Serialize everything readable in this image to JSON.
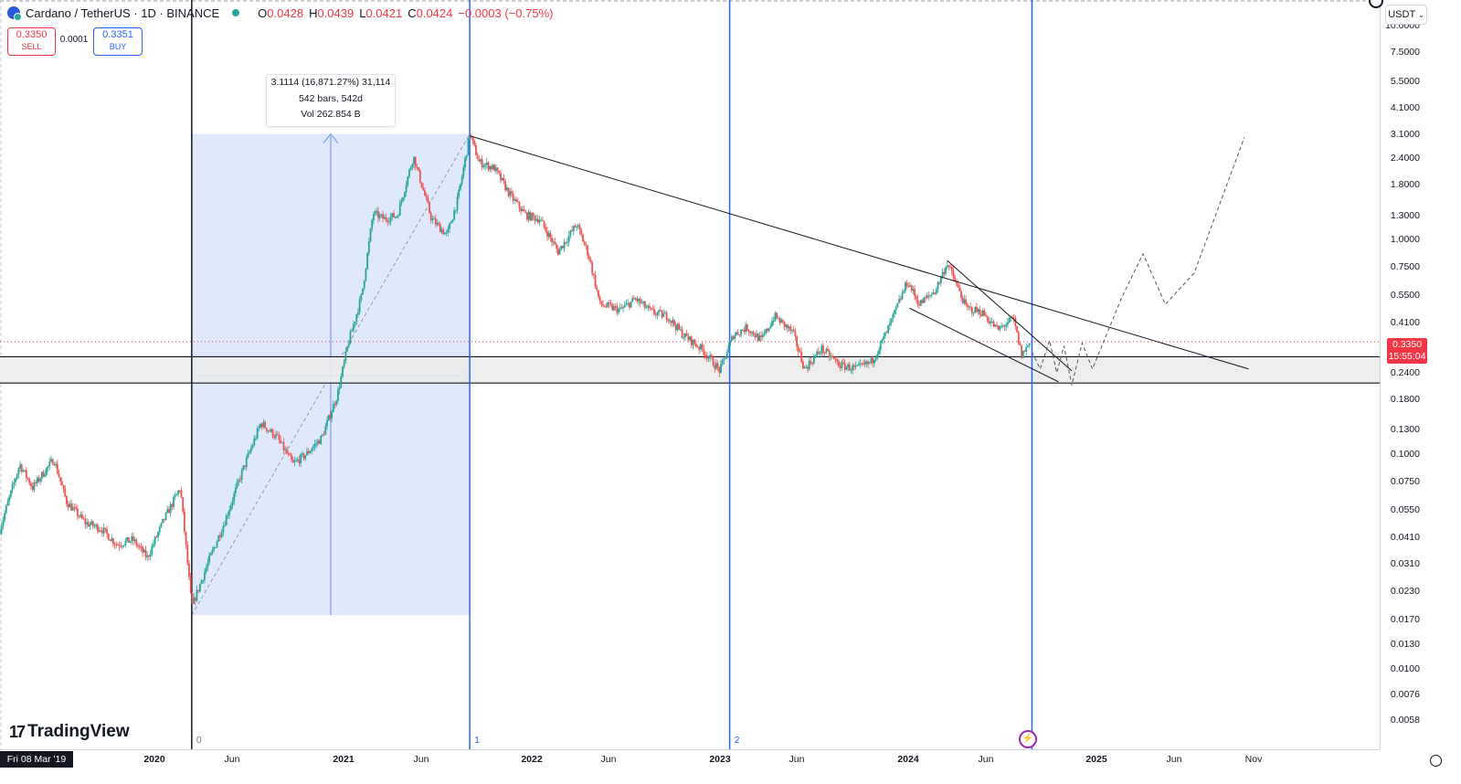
{
  "header": {
    "symbol": "Cardano / TetherUS · 1D · BINANCE",
    "open_label": "O",
    "open": "0.0428",
    "high_label": "H",
    "high": "0.0439",
    "low_label": "L",
    "low": "0.0421",
    "close_label": "C",
    "close": "0.0424",
    "change": "−0.0003 (−0.75%)"
  },
  "trade": {
    "sell_price": "0.3350",
    "sell_label": "SELL",
    "spread": "0.0001",
    "buy_price": "0.3351",
    "buy_label": "BUY"
  },
  "tooltip": {
    "line1": "3.1114 (16,871.27%) 31,114",
    "line2": "542 bars, 542d",
    "line3": "Vol 262.854 B"
  },
  "price_scale": {
    "currency": "USDT",
    "labels": [
      "10.0000",
      "7.5000",
      "5.5000",
      "4.1000",
      "3.1000",
      "2.4000",
      "1.8000",
      "1.3000",
      "1.0000",
      "0.7500",
      "0.5500",
      "0.4100",
      "0.2400",
      "0.1800",
      "0.1300",
      "0.1000",
      "0.0750",
      "0.0550",
      "0.0410",
      "0.0310",
      "0.0230",
      "0.0170",
      "0.0130",
      "0.0100",
      "0.0076",
      "0.0058"
    ],
    "current_price": "0.3350",
    "countdown": "15:55:04"
  },
  "time_scale": {
    "cursor_date": "Fri 08 Mar '19",
    "labels": [
      {
        "t": "2020",
        "bold": true
      },
      {
        "t": "Jun",
        "bold": false
      },
      {
        "t": "2021",
        "bold": true
      },
      {
        "t": "Jun",
        "bold": false
      },
      {
        "t": "2022",
        "bold": true
      },
      {
        "t": "Jun",
        "bold": false
      },
      {
        "t": "2023",
        "bold": true
      },
      {
        "t": "Jun",
        "bold": false
      },
      {
        "t": "2024",
        "bold": true
      },
      {
        "t": "Jun",
        "bold": false
      },
      {
        "t": "2025",
        "bold": true
      },
      {
        "t": "Jun",
        "bold": false
      },
      {
        "t": "Nov",
        "bold": false
      }
    ]
  },
  "vline_labels": [
    "0",
    "1",
    "2"
  ],
  "brand": "TradingView",
  "colors": {
    "up": "#26a69a",
    "down": "#ef5350",
    "range_fill": "#dbe4fb",
    "vline": "#2962ff",
    "support_band": "#ececec",
    "price_tag": "#f23645"
  },
  "chart_data": {
    "type": "candlestick",
    "title": "Cardano / TetherUS · 1D · BINANCE",
    "y_scale": "log",
    "ylim": [
      0.005,
      12
    ],
    "x_range": [
      "2019-03-08",
      "2025-12-31"
    ],
    "current_price": 0.335,
    "price_path": [
      [
        "2019-03-08",
        0.045
      ],
      [
        "2019-04-15",
        0.09
      ],
      [
        "2019-05-10",
        0.07
      ],
      [
        "2019-06-20",
        0.095
      ],
      [
        "2019-07-15",
        0.06
      ],
      [
        "2019-08-20",
        0.048
      ],
      [
        "2019-09-20",
        0.045
      ],
      [
        "2019-10-20",
        0.038
      ],
      [
        "2019-11-20",
        0.04
      ],
      [
        "2019-12-18",
        0.033
      ],
      [
        "2020-01-20",
        0.05
      ],
      [
        "2020-02-20",
        0.07
      ],
      [
        "2020-03-13",
        0.0194
      ],
      [
        "2020-04-15",
        0.032
      ],
      [
        "2020-05-15",
        0.048
      ],
      [
        "2020-06-20",
        0.085
      ],
      [
        "2020-07-25",
        0.14
      ],
      [
        "2020-08-25",
        0.12
      ],
      [
        "2020-09-25",
        0.09
      ],
      [
        "2020-10-20",
        0.1
      ],
      [
        "2020-11-20",
        0.12
      ],
      [
        "2020-12-20",
        0.19
      ],
      [
        "2021-01-10",
        0.33
      ],
      [
        "2021-02-05",
        0.55
      ],
      [
        "2021-02-27",
        1.33
      ],
      [
        "2021-03-20",
        1.25
      ],
      [
        "2021-04-15",
        1.3
      ],
      [
        "2021-05-16",
        2.45
      ],
      [
        "2021-06-20",
        1.25
      ],
      [
        "2021-07-20",
        1.05
      ],
      [
        "2021-08-10",
        1.55
      ],
      [
        "2021-09-02",
        3.1
      ],
      [
        "2021-09-20",
        2.3
      ],
      [
        "2021-10-20",
        2.15
      ],
      [
        "2021-11-20",
        1.6
      ],
      [
        "2021-12-20",
        1.3
      ],
      [
        "2022-01-15",
        1.25
      ],
      [
        "2022-02-20",
        0.88
      ],
      [
        "2022-03-28",
        1.18
      ],
      [
        "2022-04-20",
        0.85
      ],
      [
        "2022-05-12",
        0.5
      ],
      [
        "2022-06-20",
        0.47
      ],
      [
        "2022-07-20",
        0.53
      ],
      [
        "2022-08-20",
        0.46
      ],
      [
        "2022-09-20",
        0.44
      ],
      [
        "2022-10-20",
        0.36
      ],
      [
        "2022-11-25",
        0.31
      ],
      [
        "2022-12-30",
        0.245
      ],
      [
        "2023-01-25",
        0.36
      ],
      [
        "2023-02-20",
        0.39
      ],
      [
        "2023-03-20",
        0.34
      ],
      [
        "2023-04-15",
        0.44
      ],
      [
        "2023-05-20",
        0.37
      ],
      [
        "2023-06-12",
        0.25
      ],
      [
        "2023-07-15",
        0.31
      ],
      [
        "2023-08-20",
        0.26
      ],
      [
        "2023-09-20",
        0.25
      ],
      [
        "2023-10-20",
        0.27
      ],
      [
        "2023-11-20",
        0.38
      ],
      [
        "2023-12-28",
        0.64
      ],
      [
        "2024-01-20",
        0.5
      ],
      [
        "2024-02-20",
        0.58
      ],
      [
        "2024-03-14",
        0.78
      ],
      [
        "2024-04-20",
        0.48
      ],
      [
        "2024-05-20",
        0.46
      ],
      [
        "2024-06-20",
        0.38
      ],
      [
        "2024-07-20",
        0.43
      ],
      [
        "2024-08-05",
        0.29
      ],
      [
        "2024-08-20",
        0.33
      ]
    ],
    "measure": {
      "from": "2020-03-13",
      "to": "2021-09-02",
      "low": 0.0178,
      "high": 3.11,
      "change": "3.1114 (16,871.27%) 31,114",
      "bars": "542 bars, 542d",
      "volume": "Vol 262.854 B"
    },
    "vertical_lines": [
      {
        "date": "2020-03-13",
        "label": "0"
      },
      {
        "date": "2021-09-02",
        "label": "1"
      },
      {
        "date": "2023-01-18",
        "label": "2"
      },
      {
        "date": "2024-08-25",
        "label": ""
      }
    ],
    "support_zone": [
      0.215,
      0.285
    ],
    "trendlines": [
      {
        "from": [
          "2021-09-02",
          3.05
        ],
        "to": [
          "2025-10-18",
          0.25
        ]
      },
      {
        "from": [
          "2024-03-14",
          0.8
        ],
        "to": [
          "2024-11-10",
          0.245
        ]
      },
      {
        "from": [
          "2024-01-01",
          0.48
        ],
        "to": [
          "2024-10-15",
          0.218
        ]
      }
    ],
    "projection": [
      [
        "2024-08-25",
        0.3
      ],
      [
        "2024-09-10",
        0.25
      ],
      [
        "2024-09-28",
        0.34
      ],
      [
        "2024-10-12",
        0.24
      ],
      [
        "2024-10-26",
        0.32
      ],
      [
        "2024-11-10",
        0.21
      ],
      [
        "2024-11-30",
        0.33
      ],
      [
        "2024-12-20",
        0.25
      ],
      [
        "2025-02-15",
        0.54
      ],
      [
        "2025-03-28",
        0.86
      ],
      [
        "2025-05-10",
        0.5
      ],
      [
        "2025-07-05",
        0.7
      ],
      [
        "2025-10-10",
        3.0
      ]
    ]
  }
}
